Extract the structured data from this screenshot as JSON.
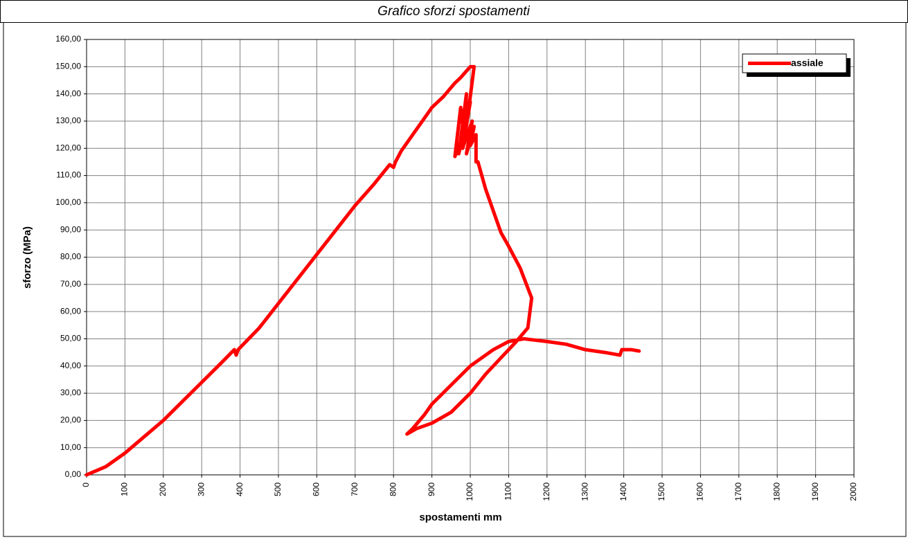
{
  "chart_data": {
    "type": "line",
    "title": "Grafico sforzi spostamenti",
    "x_label": "spostamenti mm",
    "y_label": "sforzo (MPa)",
    "xlim": [
      0,
      2000
    ],
    "ylim": [
      0,
      160
    ],
    "xticks": [
      0,
      100,
      200,
      300,
      400,
      500,
      600,
      700,
      800,
      900,
      1000,
      1100,
      1200,
      1300,
      1400,
      1500,
      1600,
      1700,
      1800,
      1900,
      2000
    ],
    "yticks": [
      {
        "value": 0,
        "label": "0,00"
      },
      {
        "value": 10,
        "label": "10,00"
      },
      {
        "value": 20,
        "label": "20,00"
      },
      {
        "value": 30,
        "label": "30,00"
      },
      {
        "value": 40,
        "label": "40,00"
      },
      {
        "value": 50,
        "label": "50,00"
      },
      {
        "value": 60,
        "label": "60,00"
      },
      {
        "value": 70,
        "label": "70,00"
      },
      {
        "value": 80,
        "label": "80,00"
      },
      {
        "value": 90,
        "label": "90,00"
      },
      {
        "value": 100,
        "label": "100,00"
      },
      {
        "value": 110,
        "label": "110,00"
      },
      {
        "value": 120,
        "label": "120,00"
      },
      {
        "value": 130,
        "label": "130,00"
      },
      {
        "value": 140,
        "label": "140,00"
      },
      {
        "value": 150,
        "label": "150,00"
      },
      {
        "value": 160,
        "label": "160,00"
      }
    ],
    "grid": true,
    "legend": "top-right",
    "x": [
      0,
      50,
      100,
      150,
      200,
      250,
      300,
      350,
      385,
      390,
      395,
      450,
      500,
      550,
      600,
      650,
      700,
      750,
      790,
      800,
      805,
      820,
      850,
      880,
      900,
      930,
      960,
      975,
      1000,
      1010,
      990,
      960,
      975,
      985,
      990,
      970,
      1000,
      980,
      1005,
      990,
      1010,
      1000,
      1015,
      1015,
      1020,
      1040,
      1060,
      1080,
      1100,
      1130,
      1160,
      1150,
      1120,
      1080,
      1040,
      1000,
      950,
      900,
      860,
      835,
      850,
      880,
      900,
      950,
      1000,
      1050,
      1060,
      1100,
      1140,
      1200,
      1250,
      1300,
      1350,
      1390,
      1395,
      1420,
      1440
    ],
    "series": [
      {
        "name": "assiale",
        "color": "#ff0000",
        "values": [
          0,
          3,
          8,
          14,
          20,
          27,
          34,
          41,
          46,
          44,
          46,
          54,
          63,
          72,
          81,
          90,
          99,
          107,
          114,
          113,
          115,
          119,
          125,
          131,
          135,
          139,
          144,
          146,
          150,
          150,
          128,
          117,
          135,
          122,
          140,
          118,
          137,
          120,
          130,
          118,
          128,
          121,
          125,
          115,
          115,
          105,
          97,
          89,
          84,
          76,
          65,
          54,
          49,
          43,
          37,
          30,
          23,
          19,
          17,
          15,
          17,
          22,
          26,
          33,
          40,
          45,
          46,
          49,
          50,
          49,
          48,
          46,
          45,
          44,
          46,
          46,
          45.5
        ]
      }
    ]
  }
}
